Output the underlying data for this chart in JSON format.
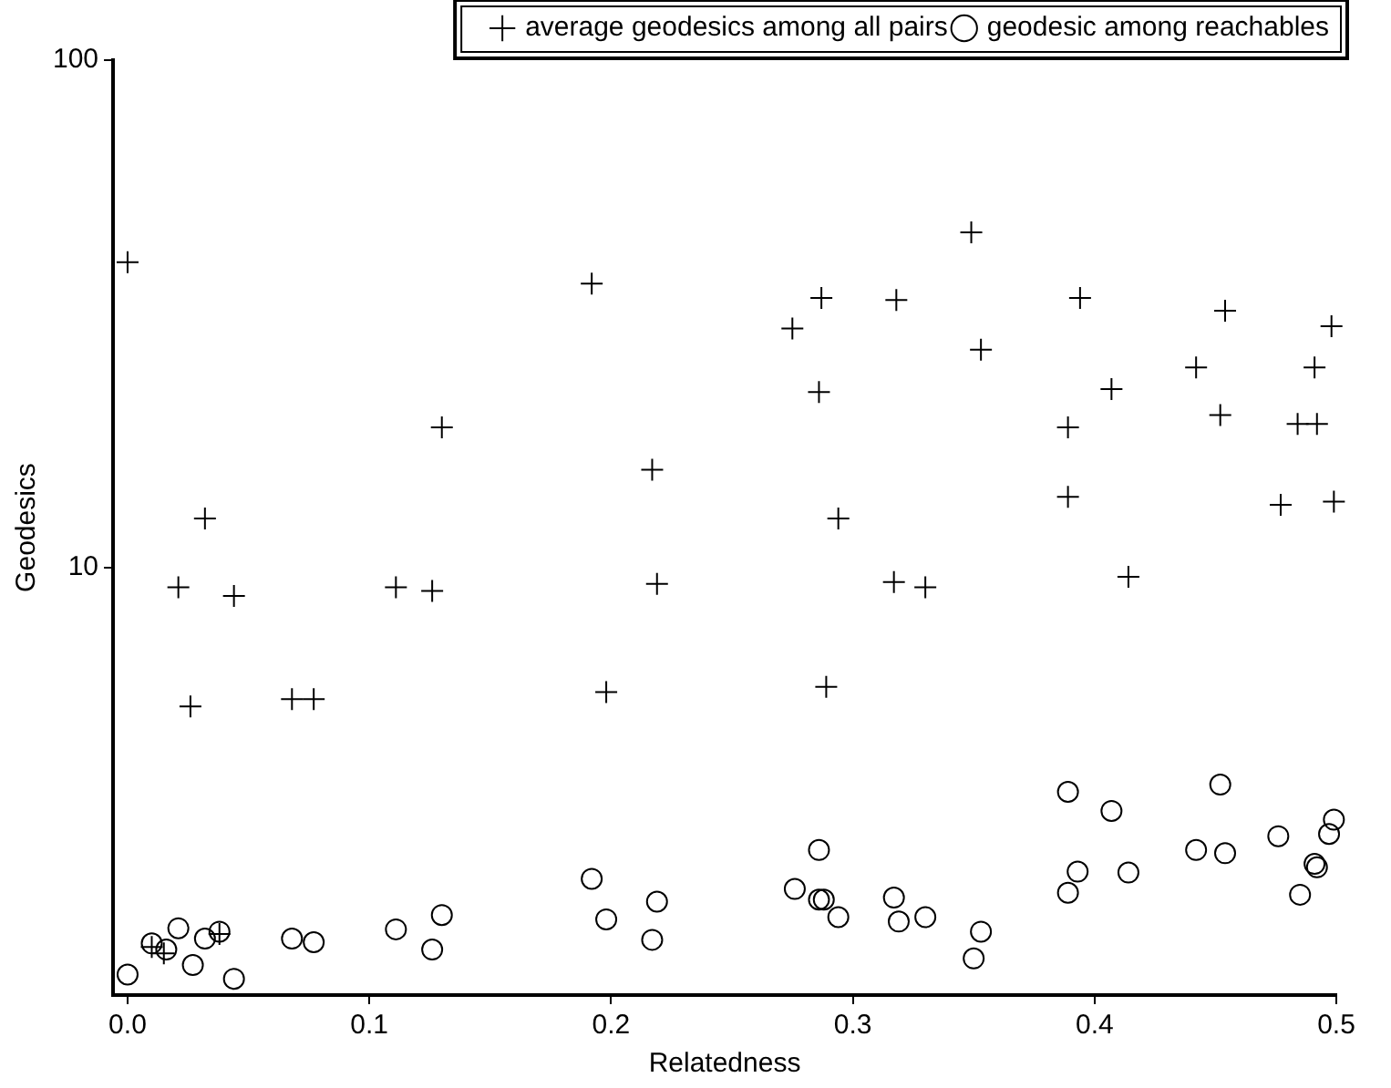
{
  "chart_data": {
    "type": "scatter",
    "xlabel": "Relatedness",
    "ylabel": "Geodesics",
    "log": "y",
    "xlim": [
      -0.006,
      0.5
    ],
    "xticks": [
      {
        "value": 0,
        "label": "0.0"
      },
      0.1,
      0.2,
      0.3,
      0.4,
      0.5
    ],
    "ylim": [
      1.44,
      100
    ],
    "yticks": [
      10,
      100
    ],
    "grid": false,
    "legend": "top right",
    "series": [
      {
        "name": "average geodesics among all pairs",
        "color": "#000000",
        "marker": "cross",
        "x": [
          0.0,
          0.021,
          0.026,
          0.032,
          0.044,
          0.068,
          0.077,
          0.111,
          0.126,
          0.13,
          0.01,
          0.015,
          0.038,
          0.192,
          0.217,
          0.219,
          0.198,
          0.349,
          0.287,
          0.318,
          0.275,
          0.394,
          0.454,
          0.498,
          0.353,
          0.286,
          0.442,
          0.491,
          0.407,
          0.389,
          0.452,
          0.484,
          0.492,
          0.389,
          0.294,
          0.477,
          0.499,
          0.317,
          0.33,
          0.414,
          0.289
        ],
        "values": [
          40,
          9.15,
          5.33,
          12.5,
          8.8,
          5.51,
          5.51,
          9.15,
          9.0,
          18.9,
          1.79,
          1.74,
          1.9,
          36.3,
          15.6,
          9.3,
          5.69,
          45.8,
          34.0,
          33.7,
          29.6,
          34.0,
          32.1,
          29.9,
          26.9,
          22.2,
          24.8,
          24.8,
          22.5,
          18.9,
          20.0,
          19.2,
          19.2,
          13.8,
          12.5,
          13.3,
          13.5,
          9.37,
          9.15,
          9.6,
          5.83
        ]
      },
      {
        "name": "geodesic among reachables",
        "color": "#000000",
        "marker": "circle",
        "x": [
          0.0,
          0.01,
          0.016,
          0.021,
          0.027,
          0.032,
          0.038,
          0.044,
          0.068,
          0.077,
          0.111,
          0.126,
          0.13,
          0.192,
          0.198,
          0.219,
          0.217,
          0.286,
          0.276,
          0.286,
          0.288,
          0.294,
          0.317,
          0.319,
          0.33,
          0.353,
          0.35,
          0.389,
          0.407,
          0.393,
          0.389,
          0.414,
          0.452,
          0.442,
          0.454,
          0.476,
          0.485,
          0.491,
          0.492,
          0.497,
          0.499
        ],
        "values": [
          1.58,
          1.82,
          1.77,
          1.95,
          1.65,
          1.86,
          1.92,
          1.55,
          1.86,
          1.83,
          1.94,
          1.77,
          2.07,
          2.44,
          2.03,
          2.2,
          1.85,
          2.78,
          2.33,
          2.22,
          2.22,
          2.05,
          2.24,
          2.01,
          2.05,
          1.92,
          1.7,
          3.62,
          3.32,
          2.52,
          2.29,
          2.51,
          3.74,
          2.78,
          2.74,
          2.96,
          2.27,
          2.61,
          2.57,
          2.99,
          3.19
        ]
      }
    ]
  }
}
